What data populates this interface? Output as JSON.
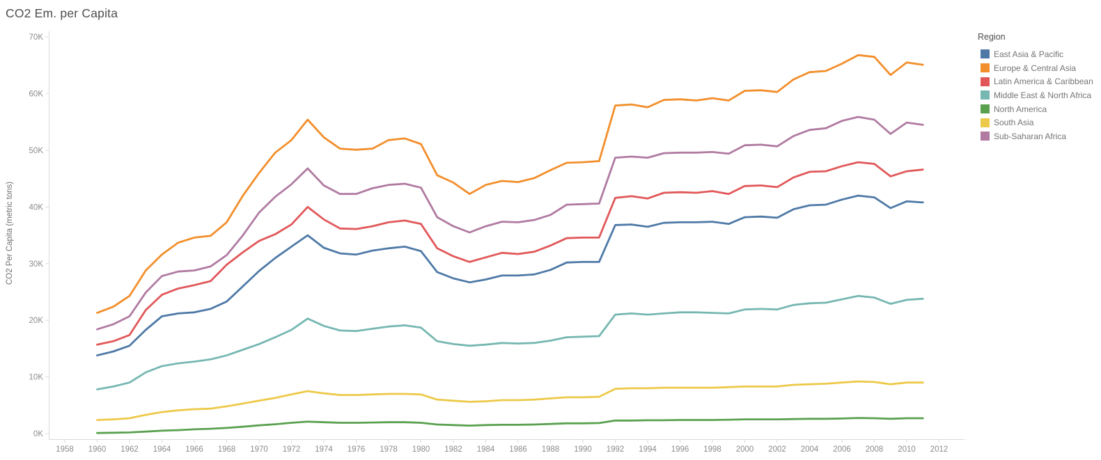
{
  "chart": {
    "title": "CO2 Em. per Capita",
    "y_axis_label": "CO2 Per Capita (metric tons)",
    "legend_title": "Region"
  },
  "chart_data": {
    "type": "line",
    "title": "CO2 Em. per Capita",
    "xlabel": "",
    "ylabel": "CO2 Per Capita (metric tons)",
    "legend_position": "right",
    "grid": "off",
    "ylim": [
      0,
      70
    ],
    "y_tick_values": [
      0,
      10,
      20,
      30,
      40,
      50,
      60,
      70
    ],
    "y_tick_labels": [
      "0K",
      "10K",
      "20K",
      "30K",
      "40K",
      "50K",
      "60K",
      "70K"
    ],
    "x_ticks": [
      1958,
      1960,
      1962,
      1964,
      1966,
      1968,
      1970,
      1972,
      1974,
      1976,
      1978,
      1980,
      1982,
      1984,
      1986,
      1988,
      1990,
      1992,
      1994,
      1996,
      1998,
      2000,
      2002,
      2004,
      2006,
      2008,
      2010,
      2012
    ],
    "x": [
      1960,
      1961,
      1962,
      1963,
      1964,
      1965,
      1966,
      1967,
      1968,
      1969,
      1970,
      1971,
      1972,
      1973,
      1974,
      1975,
      1976,
      1977,
      1978,
      1979,
      1980,
      1981,
      1982,
      1983,
      1984,
      1985,
      1986,
      1987,
      1988,
      1989,
      1990,
      1991,
      1992,
      1993,
      1994,
      1995,
      1996,
      1997,
      1998,
      1999,
      2000,
      2001,
      2002,
      2003,
      2004,
      2005,
      2006,
      2007,
      2008,
      2009,
      2010,
      2011
    ],
    "units": "K metric tons",
    "series": [
      {
        "name": "East Asia & Pacific",
        "color": "#4e79a7",
        "values": [
          13.8,
          14.5,
          15.5,
          18.3,
          20.7,
          21.2,
          21.4,
          22.0,
          23.3,
          26.0,
          28.7,
          31.0,
          33.0,
          35.0,
          32.8,
          31.8,
          31.6,
          32.3,
          32.7,
          33.0,
          32.2,
          28.5,
          27.4,
          26.7,
          27.2,
          27.9,
          27.9,
          28.1,
          28.9,
          30.2,
          30.3,
          30.3,
          36.8,
          36.9,
          36.5,
          37.2,
          37.3,
          37.3,
          37.4,
          37.0,
          38.2,
          38.3,
          38.1,
          39.6,
          40.3,
          40.4,
          41.3,
          42.0,
          41.7,
          39.8,
          41.0,
          40.8
        ]
      },
      {
        "name": "Europe & Central Asia",
        "color": "#f28e2b",
        "values": [
          21.3,
          22.4,
          24.3,
          28.8,
          31.6,
          33.7,
          34.6,
          34.9,
          37.3,
          42.0,
          46.0,
          49.6,
          51.8,
          55.4,
          52.3,
          50.3,
          50.1,
          50.3,
          51.8,
          52.1,
          51.1,
          45.6,
          44.3,
          42.3,
          43.9,
          44.6,
          44.4,
          45.1,
          46.5,
          47.8,
          47.9,
          48.1,
          57.9,
          58.1,
          57.6,
          58.9,
          59.0,
          58.8,
          59.2,
          58.8,
          60.5,
          60.6,
          60.3,
          62.5,
          63.8,
          64.0,
          65.3,
          66.8,
          66.5,
          63.3,
          65.5,
          65.1
        ]
      },
      {
        "name": "Latin America & Caribbean",
        "color": "#e15759",
        "values": [
          15.7,
          16.3,
          17.4,
          21.8,
          24.5,
          25.6,
          26.2,
          26.9,
          29.8,
          32.0,
          34.0,
          35.2,
          36.9,
          40.0,
          37.8,
          36.2,
          36.1,
          36.6,
          37.3,
          37.6,
          37.0,
          32.7,
          31.3,
          30.3,
          31.1,
          31.9,
          31.7,
          32.1,
          33.2,
          34.5,
          34.6,
          34.6,
          41.6,
          41.9,
          41.5,
          42.5,
          42.6,
          42.5,
          42.8,
          42.3,
          43.7,
          43.8,
          43.5,
          45.2,
          46.2,
          46.3,
          47.2,
          47.9,
          47.6,
          45.4,
          46.3,
          46.6
        ]
      },
      {
        "name": "Middle East & North Africa",
        "color": "#76b7b2",
        "values": [
          7.8,
          8.3,
          9.0,
          10.8,
          11.9,
          12.4,
          12.7,
          13.1,
          13.8,
          14.8,
          15.8,
          17.0,
          18.3,
          20.3,
          19.0,
          18.2,
          18.1,
          18.5,
          18.9,
          19.1,
          18.7,
          16.3,
          15.8,
          15.5,
          15.7,
          16.0,
          15.9,
          16.0,
          16.4,
          17.0,
          17.1,
          17.2,
          21.0,
          21.2,
          21.0,
          21.2,
          21.4,
          21.4,
          21.3,
          21.2,
          21.9,
          22.0,
          21.9,
          22.7,
          23.0,
          23.1,
          23.7,
          24.3,
          24.0,
          22.9,
          23.6,
          23.8
        ]
      },
      {
        "name": "North America",
        "color": "#59a14f",
        "values": [
          0.1,
          0.15,
          0.2,
          0.35,
          0.5,
          0.6,
          0.75,
          0.85,
          1.0,
          1.2,
          1.45,
          1.65,
          1.9,
          2.1,
          2.0,
          1.9,
          1.9,
          1.95,
          2.0,
          2.0,
          1.9,
          1.6,
          1.5,
          1.4,
          1.5,
          1.55,
          1.55,
          1.6,
          1.7,
          1.8,
          1.8,
          1.85,
          2.3,
          2.3,
          2.35,
          2.35,
          2.4,
          2.4,
          2.4,
          2.45,
          2.5,
          2.5,
          2.5,
          2.55,
          2.6,
          2.6,
          2.65,
          2.75,
          2.7,
          2.6,
          2.7,
          2.7
        ]
      },
      {
        "name": "South Asia",
        "color": "#edc949",
        "values": [
          2.4,
          2.5,
          2.7,
          3.3,
          3.8,
          4.1,
          4.3,
          4.4,
          4.8,
          5.3,
          5.8,
          6.3,
          6.9,
          7.5,
          7.1,
          6.8,
          6.8,
          6.9,
          7.0,
          7.0,
          6.9,
          6.0,
          5.8,
          5.6,
          5.7,
          5.9,
          5.9,
          6.0,
          6.2,
          6.4,
          6.4,
          6.5,
          7.9,
          8.0,
          8.0,
          8.1,
          8.1,
          8.1,
          8.1,
          8.2,
          8.3,
          8.3,
          8.3,
          8.6,
          8.7,
          8.8,
          9.0,
          9.2,
          9.1,
          8.7,
          9.0,
          9.0
        ]
      },
      {
        "name": "Sub-Saharan Africa",
        "color": "#b07aa1",
        "values": [
          18.4,
          19.3,
          20.7,
          24.9,
          27.8,
          28.6,
          28.8,
          29.5,
          31.5,
          35.0,
          39.0,
          41.8,
          44.0,
          46.8,
          43.8,
          42.3,
          42.3,
          43.3,
          43.9,
          44.1,
          43.4,
          38.2,
          36.6,
          35.5,
          36.6,
          37.4,
          37.3,
          37.7,
          38.6,
          40.4,
          40.5,
          40.6,
          48.7,
          48.9,
          48.7,
          49.5,
          49.6,
          49.6,
          49.7,
          49.4,
          50.9,
          51.0,
          50.7,
          52.5,
          53.6,
          53.9,
          55.2,
          55.9,
          55.4,
          52.9,
          54.9,
          54.5
        ]
      }
    ]
  }
}
